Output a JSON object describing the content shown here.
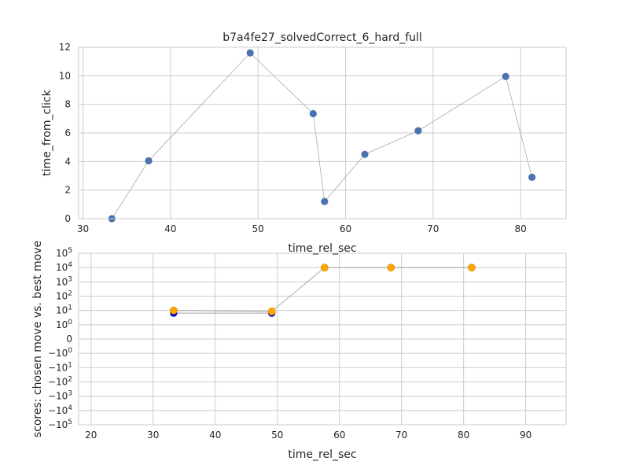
{
  "chart_data": [
    {
      "type": "scatter",
      "title": "b7a4fe27_solvedCorrect_6_hard_full",
      "xlabel": "time_rel_sec",
      "ylabel": "time_from_click",
      "xlim": [
        29.5,
        85.2
      ],
      "ylim": [
        0,
        12
      ],
      "xticks": [
        "30",
        "40",
        "50",
        "60",
        "70",
        "80"
      ],
      "yticks": [
        "0",
        "2",
        "4",
        "6",
        "8",
        "10",
        "12"
      ],
      "grid": true,
      "connected": true,
      "marker_color": "#4c72b0",
      "line_color": "#aaaaaa",
      "series": [
        {
          "x": [
            33.3,
            37.5,
            49.1,
            56.3,
            57.6,
            62.2,
            68.3,
            78.3,
            81.3
          ],
          "y": [
            0.0,
            4.05,
            11.6,
            7.35,
            1.2,
            4.5,
            6.15,
            9.95,
            2.9
          ]
        }
      ]
    },
    {
      "type": "scatter",
      "title": "",
      "xlabel": "time_rel_sec",
      "ylabel": "scores: chosen move vs. best move",
      "xlim": [
        18.0,
        96.5
      ],
      "yscale": "symlog",
      "ylim": [
        -100000,
        100000
      ],
      "xticks": [
        "20",
        "30",
        "40",
        "50",
        "60",
        "70",
        "80",
        "90"
      ],
      "yticks": [
        {
          "base": "10",
          "exp": "5",
          "sign": ""
        },
        {
          "base": "10",
          "exp": "4",
          "sign": ""
        },
        {
          "base": "10",
          "exp": "3",
          "sign": ""
        },
        {
          "base": "10",
          "exp": "2",
          "sign": ""
        },
        {
          "base": "10",
          "exp": "1",
          "sign": ""
        },
        {
          "base": "10",
          "exp": "0",
          "sign": ""
        },
        {
          "base": "0",
          "exp": "",
          "sign": ""
        },
        {
          "base": "10",
          "exp": "0",
          "sign": "−"
        },
        {
          "base": "10",
          "exp": "1",
          "sign": "−"
        },
        {
          "base": "10",
          "exp": "2",
          "sign": "−"
        },
        {
          "base": "10",
          "exp": "3",
          "sign": "−"
        },
        {
          "base": "10",
          "exp": "4",
          "sign": "−"
        },
        {
          "base": "10",
          "exp": "5",
          "sign": "−"
        }
      ],
      "grid": true,
      "series": [
        {
          "color": "#0000cc",
          "x": [
            33.3,
            49.1
          ],
          "y": [
            6.5,
            6.5
          ]
        },
        {
          "color": "#ffa500",
          "x": [
            33.3,
            49.1,
            57.6,
            68.3,
            81.3
          ],
          "y": [
            10,
            8.5,
            10000,
            10000,
            10000
          ]
        }
      ]
    }
  ]
}
